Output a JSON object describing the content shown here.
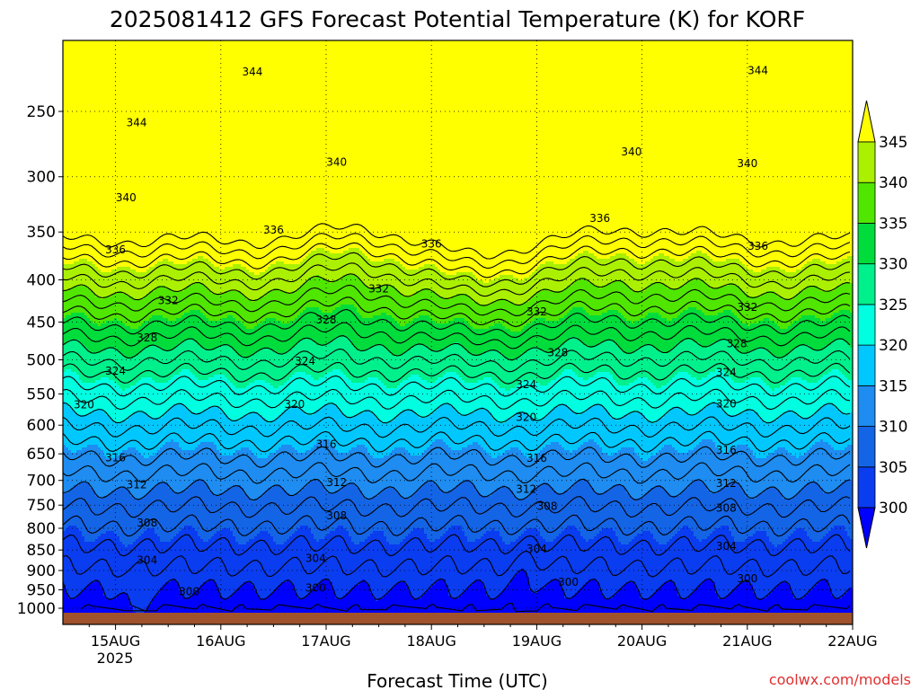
{
  "chart_data": {
    "type": "heatmap",
    "title": "2025081412 GFS Forecast Potential Temperature (K) for KORF",
    "xlabel": "Forecast Time (UTC)",
    "ylabel": "",
    "credit": "coolwx.com/models",
    "x_ticks": [
      "15AUG",
      "16AUG",
      "17AUG",
      "18AUG",
      "19AUG",
      "20AUG",
      "21AUG",
      "22AUG"
    ],
    "x_year": "2025",
    "x_range_days": [
      14.5,
      22.0
    ],
    "y_ticks": [
      250,
      300,
      350,
      400,
      450,
      500,
      550,
      600,
      650,
      700,
      750,
      800,
      850,
      900,
      950,
      1000
    ],
    "y_range_hPa": [
      200,
      1000
    ],
    "y_scale": "log-pressure (inverted)",
    "colorbar": {
      "levels": [
        300,
        305,
        310,
        315,
        320,
        325,
        330,
        335,
        340,
        345
      ],
      "colors": [
        "#0000ff",
        "#0a3cf0",
        "#1464e6",
        "#1e8cf0",
        "#00c8ff",
        "#00ffe1",
        "#00f08c",
        "#00dc3c",
        "#50e600",
        "#aaf000",
        "#ffff00"
      ],
      "extend": "both"
    },
    "contour_interval_K": 2,
    "contour_levels_labeled": [
      300,
      304,
      308,
      312,
      316,
      320,
      324,
      328,
      332,
      336,
      340,
      344
    ],
    "contour_labels_placed": [
      {
        "label": "344",
        "day": 15.2,
        "p": 258
      },
      {
        "label": "344",
        "day": 16.3,
        "p": 224
      },
      {
        "label": "344",
        "day": 21.1,
        "p": 223
      },
      {
        "label": "340",
        "day": 15.1,
        "p": 318
      },
      {
        "label": "340",
        "day": 17.1,
        "p": 288
      },
      {
        "label": "340",
        "day": 19.9,
        "p": 280
      },
      {
        "label": "340",
        "day": 21.0,
        "p": 289
      },
      {
        "label": "336",
        "day": 15.0,
        "p": 368
      },
      {
        "label": "336",
        "day": 16.5,
        "p": 348
      },
      {
        "label": "336",
        "day": 18.0,
        "p": 362
      },
      {
        "label": "336",
        "day": 19.6,
        "p": 337
      },
      {
        "label": "336",
        "day": 21.1,
        "p": 364
      },
      {
        "label": "332",
        "day": 15.5,
        "p": 424
      },
      {
        "label": "332",
        "day": 17.5,
        "p": 410
      },
      {
        "label": "332",
        "day": 19.0,
        "p": 437
      },
      {
        "label": "332",
        "day": 21.0,
        "p": 432
      },
      {
        "label": "328",
        "day": 15.3,
        "p": 470
      },
      {
        "label": "328",
        "day": 17.0,
        "p": 447
      },
      {
        "label": "328",
        "day": 19.2,
        "p": 490
      },
      {
        "label": "328",
        "day": 20.9,
        "p": 478
      },
      {
        "label": "324",
        "day": 15.0,
        "p": 516
      },
      {
        "label": "324",
        "day": 16.8,
        "p": 502
      },
      {
        "label": "324",
        "day": 18.9,
        "p": 536
      },
      {
        "label": "324",
        "day": 20.8,
        "p": 518
      },
      {
        "label": "320",
        "day": 14.7,
        "p": 567
      },
      {
        "label": "320",
        "day": 16.7,
        "p": 566
      },
      {
        "label": "320",
        "day": 18.9,
        "p": 587
      },
      {
        "label": "320",
        "day": 20.8,
        "p": 565
      },
      {
        "label": "316",
        "day": 15.0,
        "p": 657
      },
      {
        "label": "316",
        "day": 17.0,
        "p": 633
      },
      {
        "label": "316",
        "day": 19.0,
        "p": 658
      },
      {
        "label": "316",
        "day": 20.8,
        "p": 643
      },
      {
        "label": "312",
        "day": 15.2,
        "p": 708
      },
      {
        "label": "312",
        "day": 17.1,
        "p": 704
      },
      {
        "label": "312",
        "day": 18.9,
        "p": 717
      },
      {
        "label": "312",
        "day": 20.8,
        "p": 706
      },
      {
        "label": "308",
        "day": 15.3,
        "p": 788
      },
      {
        "label": "308",
        "day": 17.1,
        "p": 772
      },
      {
        "label": "308",
        "day": 19.1,
        "p": 752
      },
      {
        "label": "308",
        "day": 20.8,
        "p": 756
      },
      {
        "label": "304",
        "day": 15.3,
        "p": 875
      },
      {
        "label": "304",
        "day": 16.9,
        "p": 870
      },
      {
        "label": "304",
        "day": 19.0,
        "p": 847
      },
      {
        "label": "304",
        "day": 20.8,
        "p": 841
      },
      {
        "label": "300",
        "day": 15.7,
        "p": 955
      },
      {
        "label": "300",
        "day": 16.9,
        "p": 945
      },
      {
        "label": "300",
        "day": 19.3,
        "p": 930
      },
      {
        "label": "300",
        "day": 21.0,
        "p": 921
      }
    ],
    "surface_fill_color": "#a0522d",
    "grid": "dotted",
    "legend_placement": "right colorbar"
  }
}
